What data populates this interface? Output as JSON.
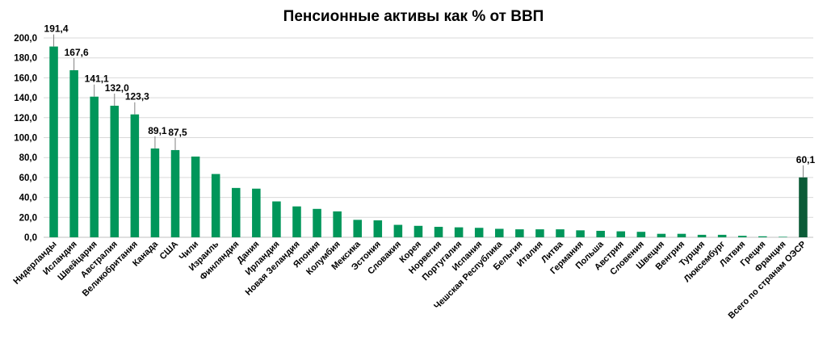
{
  "chart_data": {
    "type": "bar",
    "title": "Пенсионные активы как % от ВВП",
    "xlabel": "",
    "ylabel": "",
    "ylim": [
      0,
      200
    ],
    "ytick_step": 20,
    "ytick_labels": [
      "0,0",
      "20,0",
      "40,0",
      "60,0",
      "80,0",
      "100,0",
      "120,0",
      "140,0",
      "160,0",
      "180,0",
      "200,0"
    ],
    "grid": true,
    "legend": "none",
    "bar_color": "#00965A",
    "highlight_color": "#0B5B37",
    "highlight_index": 37,
    "categories": [
      "Нидерланды",
      "Исландия",
      "Швейцария",
      "Австралия",
      "Великобритания",
      "Канада",
      "США",
      "Чили",
      "Израиль",
      "Финляндия",
      "Дания",
      "Ирландия",
      "Новая Зеландия",
      "Япония",
      "Колумбия",
      "Мексика",
      "Эстония",
      "Словакия",
      "Корея",
      "Норвегия",
      "Португалия",
      "Испания",
      "Чешская Республика",
      "Бельгия",
      "Италия",
      "Литва",
      "Германия",
      "Польша",
      "Австрия",
      "Словения",
      "Швеция",
      "Венгрия",
      "Турция",
      "Люксембург",
      "Латвия",
      "Греция",
      "Франция",
      "Всего по странам ОЭСР"
    ],
    "values": [
      191.4,
      167.6,
      141.1,
      132.0,
      123.3,
      89.1,
      87.5,
      81.0,
      63.5,
      49.5,
      48.8,
      36.0,
      31.0,
      28.5,
      26.0,
      17.5,
      17.0,
      12.5,
      11.5,
      10.5,
      10.0,
      9.5,
      8.5,
      8.0,
      8.0,
      8.0,
      7.0,
      6.5,
      6.0,
      5.5,
      3.5,
      3.5,
      2.5,
      2.5,
      1.5,
      1.0,
      0.5,
      60.1
    ],
    "data_labels": [
      "191,4",
      "167,6",
      "141,1",
      "132,0",
      "123,3",
      "89,1",
      "87,5",
      "",
      "",
      "",
      "",
      "",
      "",
      "",
      "",
      "",
      "",
      "",
      "",
      "",
      "",
      "",
      "",
      "",
      "",
      "",
      "",
      "",
      "",
      "",
      "",
      "",
      "",
      "",
      "",
      "",
      "",
      "60,1"
    ]
  }
}
